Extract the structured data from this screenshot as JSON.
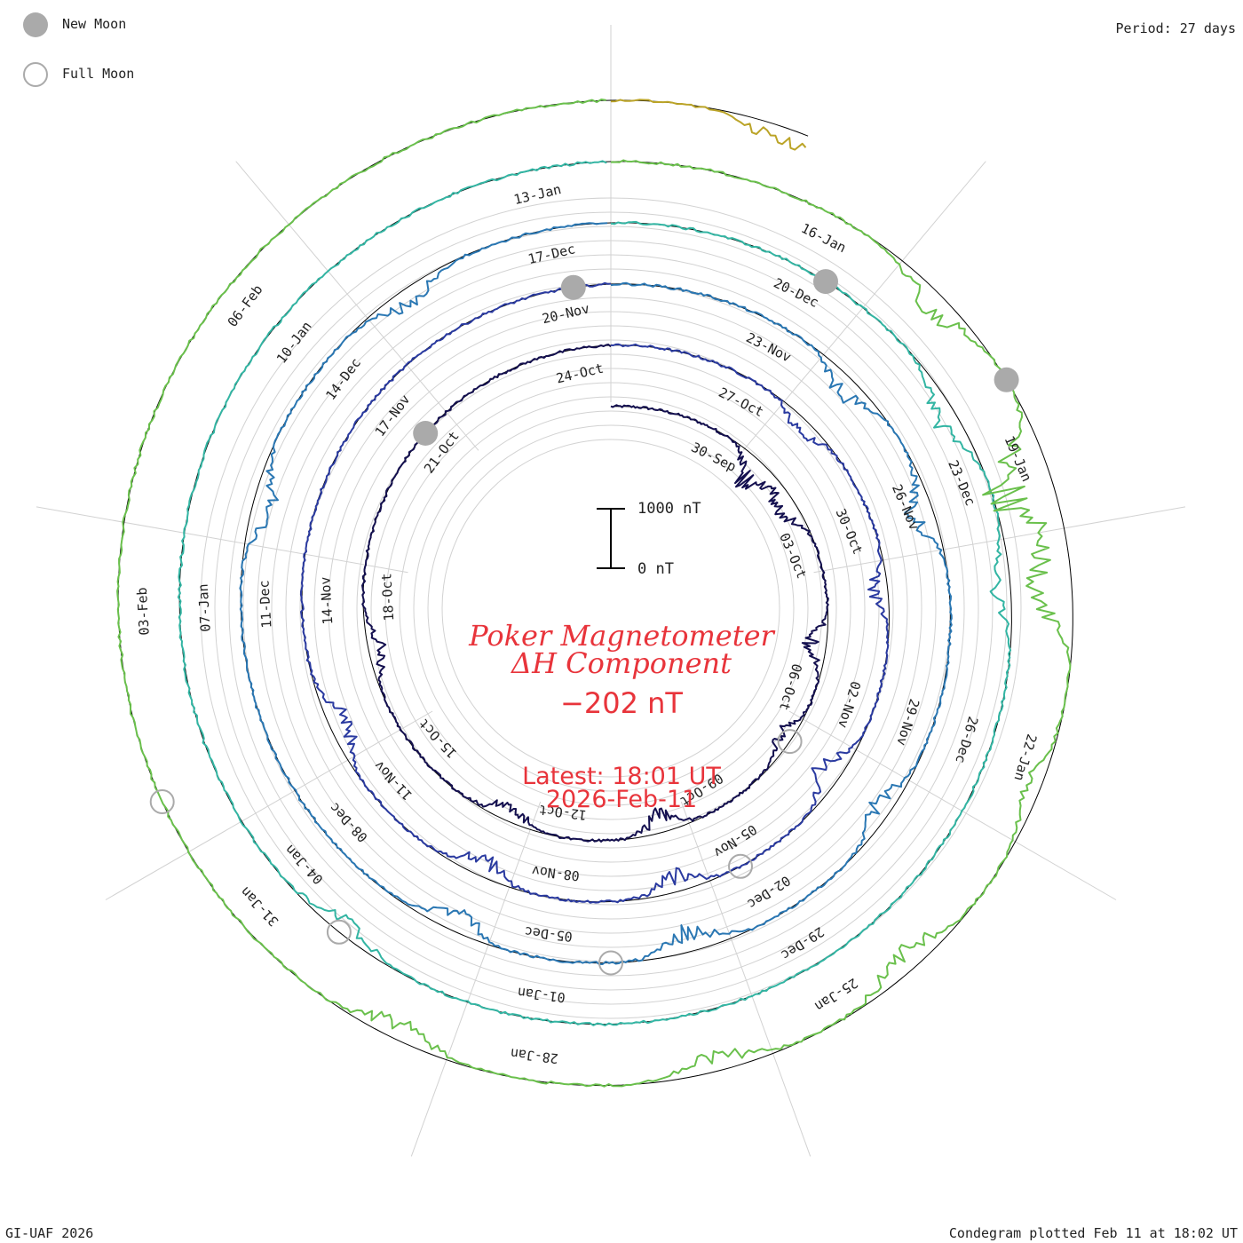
{
  "legend": {
    "new_moon_label": "New Moon",
    "full_moon_label": "Full Moon",
    "new_moon_color": "#aaaaaa",
    "full_moon_color": "#aaaaaa"
  },
  "header": {
    "period": "Period: 27 days"
  },
  "footer": {
    "credit": "GI-UAF 2026",
    "plotted": "Condegram plotted Feb 11 at 18:02 UT"
  },
  "center": {
    "title_line1": "Poker Magnetometer",
    "title_line2": "ΔH Component",
    "current_value": "−202 nT",
    "latest": "Latest: 18:01 UT",
    "date": "2026-Feb-11"
  },
  "scale_bar": {
    "top_label": "1000 nT",
    "bottom_label": "0 nT"
  },
  "chart_data": {
    "type": "line",
    "title": "Poker Magnetometer ΔH Component",
    "chart_style": "condegram (spiral)",
    "period_days": 27,
    "start_date": "2025-09-28",
    "end_date": "2026-02-11T18:01",
    "scale_nT": [
      0,
      1000
    ],
    "current_value_nT": -202,
    "date_labels": [
      "30-Sep",
      "03-Oct",
      "06-Oct",
      "09-Oct",
      "12-Oct",
      "15-Oct",
      "18-Oct",
      "21-Oct",
      "24-Oct",
      "27-Oct",
      "30-Oct",
      "02-Nov",
      "05-Nov",
      "08-Nov",
      "11-Nov",
      "14-Nov",
      "17-Nov",
      "20-Nov",
      "23-Nov",
      "26-Nov",
      "29-Nov",
      "02-Dec",
      "05-Dec",
      "08-Dec",
      "11-Dec",
      "14-Dec",
      "17-Dec",
      "20-Dec",
      "23-Dec",
      "26-Dec",
      "29-Dec",
      "01-Jan",
      "04-Jan",
      "07-Jan",
      "10-Jan",
      "13-Jan",
      "16-Jan",
      "19-Jan",
      "22-Jan",
      "25-Jan",
      "28-Jan",
      "31-Jan",
      "03-Feb",
      "06-Feb"
    ],
    "disturbance_events": [
      {
        "date": "2025-10-01",
        "amplitude_nT": 700
      },
      {
        "date": "2025-10-02",
        "amplitude_nT": 500
      },
      {
        "date": "2025-10-05",
        "amplitude_nT": 400
      },
      {
        "date": "2025-10-07",
        "amplitude_nT": 300
      },
      {
        "date": "2025-10-10",
        "amplitude_nT": 450
      },
      {
        "date": "2025-10-13",
        "amplitude_nT": 400
      },
      {
        "date": "2025-10-17",
        "amplitude_nT": 350
      },
      {
        "date": "2025-10-28",
        "amplitude_nT": 300
      },
      {
        "date": "2025-10-31",
        "amplitude_nT": 350
      },
      {
        "date": "2025-11-03",
        "amplitude_nT": 500
      },
      {
        "date": "2025-11-06",
        "amplitude_nT": 400
      },
      {
        "date": "2025-11-09",
        "amplitude_nT": 450
      },
      {
        "date": "2025-11-12",
        "amplitude_nT": 500
      },
      {
        "date": "2025-11-24",
        "amplitude_nT": 400
      },
      {
        "date": "2025-11-26",
        "amplitude_nT": 500
      },
      {
        "date": "2025-11-30",
        "amplitude_nT": 400
      },
      {
        "date": "2025-12-03",
        "amplitude_nT": 500
      },
      {
        "date": "2025-12-06",
        "amplitude_nT": 450
      },
      {
        "date": "2025-12-12",
        "amplitude_nT": 450
      },
      {
        "date": "2025-12-15",
        "amplitude_nT": 350
      },
      {
        "date": "2025-12-22",
        "amplitude_nT": 450
      },
      {
        "date": "2025-12-24",
        "amplitude_nT": 400
      },
      {
        "date": "2026-01-03",
        "amplitude_nT": 350
      },
      {
        "date": "2026-01-17",
        "amplitude_nT": 450
      },
      {
        "date": "2026-01-19",
        "amplitude_nT": 1300
      },
      {
        "date": "2026-01-20",
        "amplitude_nT": 1000
      },
      {
        "date": "2026-01-22",
        "amplitude_nT": 300
      },
      {
        "date": "2026-01-24",
        "amplitude_nT": 500
      },
      {
        "date": "2026-01-26",
        "amplitude_nT": 350
      },
      {
        "date": "2026-01-29",
        "amplitude_nT": 400
      },
      {
        "date": "2026-02-11",
        "amplitude_nT": 350
      }
    ],
    "new_moons": [
      "2025-10-21",
      "2025-11-20",
      "2025-12-20",
      "2026-01-18"
    ],
    "full_moons": [
      "2025-10-07",
      "2025-11-05",
      "2025-12-04",
      "2026-01-03",
      "2026-02-01"
    ],
    "ring_colors": [
      "#14104f",
      "#2a3aa0",
      "#2a77b3",
      "#33b5a3",
      "#6ac04c",
      "#bba428",
      "#c0762a",
      "#c4351c"
    ]
  }
}
